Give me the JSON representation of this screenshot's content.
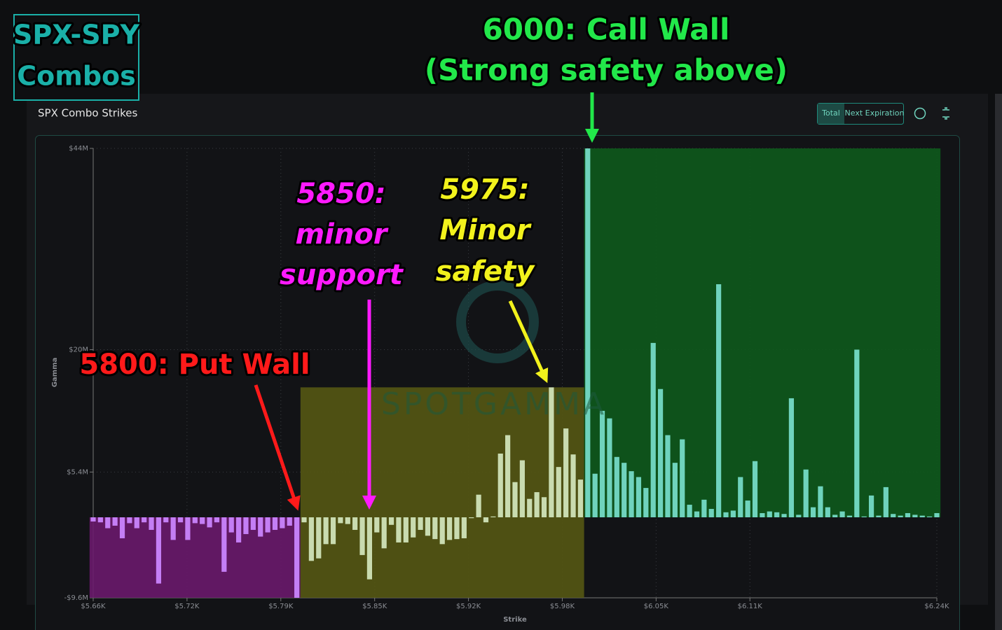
{
  "header": {
    "lines": [
      "SPX-SPY",
      "Combos"
    ]
  },
  "panel": {
    "title": "SPX Combo Strikes",
    "buttons": [
      "Total",
      "Next Expiration"
    ]
  },
  "chart_data": {
    "type": "bar",
    "x_label": "Strike",
    "y_label": "Gamma",
    "watermark": "SPOTGAMMA",
    "x": [
      5660,
      5665,
      5670,
      5675,
      5680,
      5685,
      5690,
      5695,
      5700,
      5705,
      5710,
      5715,
      5720,
      5725,
      5730,
      5735,
      5740,
      5745,
      5750,
      5755,
      5760,
      5765,
      5770,
      5775,
      5780,
      5785,
      5790,
      5795,
      5800,
      5805,
      5810,
      5815,
      5820,
      5825,
      5830,
      5835,
      5840,
      5845,
      5850,
      5855,
      5860,
      5865,
      5870,
      5875,
      5880,
      5885,
      5890,
      5895,
      5900,
      5905,
      5910,
      5915,
      5920,
      5925,
      5930,
      5935,
      5940,
      5945,
      5950,
      5955,
      5960,
      5965,
      5970,
      5975,
      5980,
      5985,
      5990,
      5995,
      6000,
      6005,
      6010,
      6015,
      6020,
      6025,
      6030,
      6035,
      6040,
      6045,
      6050,
      6055,
      6060,
      6065,
      6070,
      6075,
      6080,
      6085,
      6090,
      6095,
      6100,
      6105,
      6110,
      6115,
      6120,
      6125,
      6130,
      6135,
      6140,
      6145,
      6150,
      6155,
      6160,
      6165,
      6170,
      6175,
      6180,
      6185,
      6190,
      6195,
      6200,
      6205,
      6210,
      6215,
      6220,
      6225,
      6230,
      6235,
      6240
    ],
    "values": [
      -0.5,
      -0.6,
      -1.3,
      -1.0,
      -2.5,
      -0.7,
      -1.3,
      -0.6,
      -1.5,
      -7.9,
      -0.6,
      -2.7,
      -0.6,
      -2.7,
      -0.7,
      -0.8,
      -1.2,
      -0.6,
      -6.5,
      -1.8,
      -3.0,
      -2.0,
      -1.5,
      -2.3,
      -1.8,
      -1.5,
      -1.3,
      -1.0,
      -9.6,
      -0.6,
      -5.2,
      -4.9,
      -3.2,
      -3.2,
      -0.7,
      -0.8,
      -1.5,
      -4.5,
      -7.4,
      -1.8,
      -3.7,
      -0.9,
      -3.0,
      -3.0,
      -2.4,
      -1.5,
      -2.2,
      -2.6,
      -3.2,
      -2.7,
      -2.6,
      -2.5,
      -0.1,
      2.7,
      -0.6,
      0.1,
      7.6,
      9.8,
      4.2,
      6.8,
      2.2,
      3.0,
      2.4,
      15.5,
      6.0,
      10.6,
      7.5,
      4.5,
      44,
      5.2,
      12.7,
      11.8,
      7.2,
      6.5,
      5.5,
      4.8,
      3.5,
      20.8,
      15.3,
      9.8,
      6.5,
      9.3,
      1.5,
      0.7,
      2.1,
      1.0,
      27.8,
      0.6,
      0.8,
      4.8,
      2.0,
      6.7,
      0.5,
      0.7,
      0.6,
      0.4,
      14.2,
      0.3,
      5.7,
      1.2,
      3.7,
      1.2,
      0.3,
      0.7,
      0.2,
      20.0,
      0.1,
      2.6,
      0.2,
      3.6,
      0.4,
      0.2,
      0.5,
      0.3,
      0.2,
      0.1,
      0.5
    ],
    "xlim": [
      5660,
      6240
    ],
    "xticks": [
      {
        "value": 5660,
        "label": "$5.66K"
      },
      {
        "value": 5724.5,
        "label": "$5.72K"
      },
      {
        "value": 5789,
        "label": "$5.79K"
      },
      {
        "value": 5853.5,
        "label": "$5.85K"
      },
      {
        "value": 5918,
        "label": "$5.92K"
      },
      {
        "value": 5982.5,
        "label": "$5.98K"
      },
      {
        "value": 6047,
        "label": "$6.05K"
      },
      {
        "value": 6111.5,
        "label": "$6.11K"
      },
      {
        "value": 6240,
        "label": "$6.24K"
      }
    ],
    "ylim": [
      -9.6,
      44
    ],
    "yticks": [
      {
        "value": 44,
        "label": "$44M"
      },
      {
        "value": 20,
        "label": "$20M"
      },
      {
        "value": 5.4,
        "label": "$5.4M"
      },
      {
        "value": -9.6,
        "label": "-$9.6M"
      }
    ],
    "grid": true,
    "zones": [
      {
        "x": [
          5657.5,
          5802.5
        ],
        "y": [
          -9.6,
          0
        ],
        "color": "#6a1a6c",
        "bar_color": "#c47ef5"
      },
      {
        "x": [
          5802.5,
          5997.5
        ],
        "y": [
          -9.6,
          15.5
        ],
        "color": "#555813",
        "bar_color": "#c9dbb0"
      },
      {
        "x": [
          5997.5,
          6242.5
        ],
        "y": [
          0,
          44
        ],
        "color": "#0e5a1c",
        "bar_color": "#6fd3bd"
      }
    ],
    "annotations": [
      {
        "lines": [
          "6000: Call Wall",
          "(Strong safety above)"
        ],
        "color": "#22e84a"
      },
      {
        "lines": [
          "5850:",
          "minor",
          "support"
        ],
        "color": "#ff1aff"
      },
      {
        "lines": [
          "5975:",
          "Minor",
          "safety"
        ],
        "color": "#f2f21c"
      },
      {
        "lines": [
          "5800: Put Wall"
        ],
        "color": "#ff1a1a"
      }
    ]
  }
}
